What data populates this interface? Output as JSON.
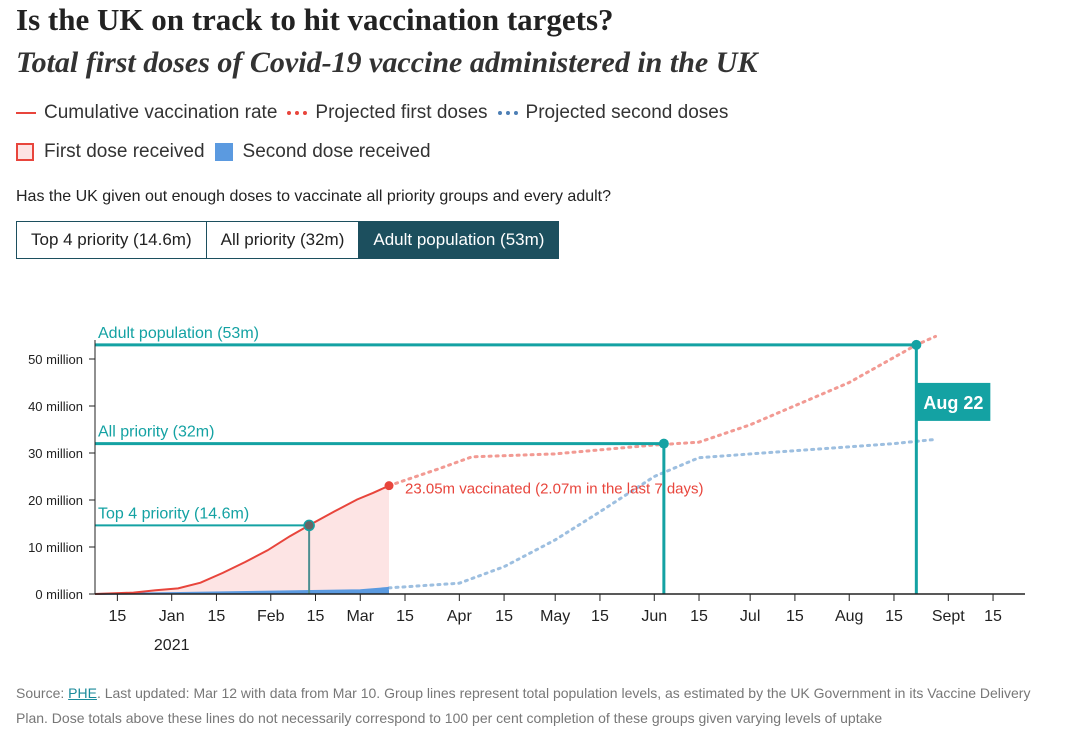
{
  "header": {
    "title": "Is the UK on track to hit vaccination targets?",
    "subtitle": "Total first doses of Covid-19 vaccine administered in the UK"
  },
  "legend": {
    "row1": [
      {
        "label": "Cumulative vaccination rate",
        "swatch": "solid-line",
        "color": "#e8453c"
      },
      {
        "label": "Projected first doses",
        "swatch": "dotted-line",
        "color": "#e8453c"
      },
      {
        "label": "Projected second doses",
        "swatch": "dotted-line",
        "color": "#4d7fb5"
      }
    ],
    "row2": [
      {
        "label": "First dose received",
        "swatch": "box",
        "color": "#fde4e4"
      },
      {
        "label": "Second dose received",
        "swatch": "box",
        "color": "#5b9ae0"
      }
    ]
  },
  "question": "Has the UK given out enough doses to vaccinate all priority groups and every adult?",
  "buttons": [
    {
      "label": "Top 4 priority (14.6m)",
      "active": false
    },
    {
      "label": "All priority (32m)",
      "active": false
    },
    {
      "label": "Adult population (53m)",
      "active": true
    }
  ],
  "colors": {
    "first_dose": "#e8453c",
    "first_dose_projection": "#f29a93",
    "first_dose_fill": "#fde4e4",
    "second_dose": "#5b9ae0",
    "second_dose_projection": "#9dbfe0",
    "target": "#14a2a3",
    "axis": "#222222",
    "toggle_active": "#1c4f5e"
  },
  "chart_data": {
    "type": "line",
    "y_unit_label": "million",
    "ylim": [
      0,
      55
    ],
    "y_ticks": [
      {
        "value": 0,
        "label": "0 million"
      },
      {
        "value": 10,
        "label": "10 million"
      },
      {
        "value": 20,
        "label": "20 million"
      },
      {
        "value": 30,
        "label": "30 million"
      },
      {
        "value": 40,
        "label": "40 million"
      },
      {
        "value": 50,
        "label": "50 million"
      }
    ],
    "x_range": [
      "2020-12-08",
      "2021-09-25"
    ],
    "x_ticks": [
      {
        "date": "2020-12-15",
        "label": "15"
      },
      {
        "date": "2021-01-01",
        "label": "Jan",
        "sublabel": "2021"
      },
      {
        "date": "2021-01-15",
        "label": "15"
      },
      {
        "date": "2021-02-01",
        "label": "Feb"
      },
      {
        "date": "2021-02-15",
        "label": "15"
      },
      {
        "date": "2021-03-01",
        "label": "Mar"
      },
      {
        "date": "2021-03-15",
        "label": "15"
      },
      {
        "date": "2021-04-01",
        "label": "Apr"
      },
      {
        "date": "2021-04-15",
        "label": "15"
      },
      {
        "date": "2021-05-01",
        "label": "May"
      },
      {
        "date": "2021-05-15",
        "label": "15"
      },
      {
        "date": "2021-06-01",
        "label": "Jun"
      },
      {
        "date": "2021-06-15",
        "label": "15"
      },
      {
        "date": "2021-07-01",
        "label": "Jul"
      },
      {
        "date": "2021-07-15",
        "label": "15"
      },
      {
        "date": "2021-08-01",
        "label": "Aug"
      },
      {
        "date": "2021-08-15",
        "label": "15"
      },
      {
        "date": "2021-09-01",
        "label": "Sept"
      },
      {
        "date": "2021-09-15",
        "label": "15"
      }
    ],
    "series": [
      {
        "key": "first",
        "style": "solid-area",
        "points": [
          [
            "2020-12-08",
            0
          ],
          [
            "2020-12-20",
            0.3
          ],
          [
            "2020-12-27",
            0.8
          ],
          [
            "2021-01-03",
            1.2
          ],
          [
            "2021-01-10",
            2.4
          ],
          [
            "2021-01-17",
            4.5
          ],
          [
            "2021-01-24",
            6.8
          ],
          [
            "2021-01-31",
            9.3
          ],
          [
            "2021-02-07",
            12.3
          ],
          [
            "2021-02-14",
            15.0
          ],
          [
            "2021-02-21",
            17.6
          ],
          [
            "2021-02-28",
            20.1
          ],
          [
            "2021-03-05",
            21.5
          ],
          [
            "2021-03-10",
            23.05
          ]
        ]
      },
      {
        "key": "second",
        "style": "solid-area",
        "points": [
          [
            "2020-12-08",
            0
          ],
          [
            "2021-01-01",
            0.2
          ],
          [
            "2021-02-01",
            0.5
          ],
          [
            "2021-03-01",
            0.8
          ],
          [
            "2021-03-10",
            1.3
          ]
        ]
      },
      {
        "key": "first_projected",
        "style": "dotted",
        "points": [
          [
            "2021-03-10",
            23.05
          ],
          [
            "2021-03-25",
            26.5
          ],
          [
            "2021-04-05",
            29.2
          ],
          [
            "2021-05-01",
            29.8
          ],
          [
            "2021-06-01",
            31.7
          ],
          [
            "2021-06-15",
            32.3
          ],
          [
            "2021-07-01",
            36.0
          ],
          [
            "2021-08-01",
            45.0
          ],
          [
            "2021-08-22",
            53.0
          ],
          [
            "2021-08-28",
            54.8
          ]
        ]
      },
      {
        "key": "second_projected",
        "style": "dotted",
        "points": [
          [
            "2021-03-10",
            1.3
          ],
          [
            "2021-04-01",
            2.3
          ],
          [
            "2021-04-15",
            5.8
          ],
          [
            "2021-05-01",
            11.5
          ],
          [
            "2021-05-15",
            17.5
          ],
          [
            "2021-06-01",
            25.0
          ],
          [
            "2021-06-15",
            29.0
          ],
          [
            "2021-07-15",
            30.5
          ],
          [
            "2021-08-15",
            32.0
          ],
          [
            "2021-08-28",
            32.9
          ]
        ]
      }
    ],
    "current_point": {
      "date": "2021-03-10",
      "value": 23.05,
      "label": "23.05m vaccinated (2.07m in the last 7 days)"
    },
    "targets": [
      {
        "label": "Top 4 priority (14.6m)",
        "value": 14.6,
        "hit_date": "2021-02-13",
        "style": "past"
      },
      {
        "label": "All priority (32m)",
        "value": 32,
        "hit_date": "2021-06-04",
        "style": "projected"
      },
      {
        "label": "Adult population (53m)",
        "value": 53,
        "hit_date": "2021-08-22",
        "style": "projected",
        "date_badge": "Aug 22"
      }
    ]
  },
  "footnote": {
    "source_prefix": "Source: ",
    "source_link": "PHE",
    "text": ". Last updated: Mar 12 with data from Mar 10. Group lines represent total population levels, as estimated by the UK Government in its Vaccine Delivery Plan. Dose totals above these lines do not necessarily correspond to 100 per cent completion of these groups given varying levels of uptake"
  }
}
